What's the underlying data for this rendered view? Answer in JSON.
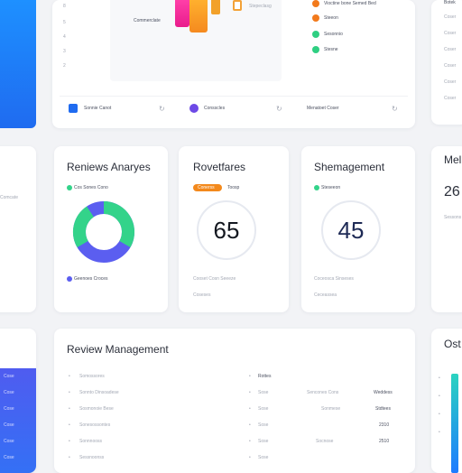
{
  "top": {
    "axis_ticks": [
      "8",
      "5",
      "4",
      "3",
      "2"
    ],
    "chart_caption": "Commerclate",
    "chart_legend": "Stepeclasg",
    "right_list": [
      "Vioctine bone Semed Bed",
      "Steeon",
      "Sesonnio",
      "Stesne"
    ],
    "footer_items": [
      "Sonnie Canot",
      "Consscles",
      "Menatoet Coser"
    ]
  },
  "far_right_top": {
    "label": "Botek",
    "rows": [
      "Coser",
      "Coser",
      "Coser",
      "Coser",
      "Coser",
      "Coser"
    ]
  },
  "left_mid": {
    "label": "Comcate"
  },
  "cards": [
    {
      "title": "Reniews Anaryes",
      "legend": "Cos Sones Cono",
      "footer": "Geenoes Croces"
    },
    {
      "title": "Rovetfares",
      "pill": "Conerss",
      "legend": "Toosp",
      "value": "65",
      "footer1": "Cooset Cosn Seeeze",
      "footer2": "Coseses"
    },
    {
      "title": "Shemagement",
      "legend": "Steseeon",
      "value": "45",
      "footer1": "Coceosca Sinseses",
      "footer2": "Ceceassea"
    }
  ],
  "right_partial_card": {
    "title": "Mel",
    "value": "26",
    "label": "Sessons"
  },
  "review": {
    "title": "Review Management",
    "rows": [
      {
        "name": "Somossores",
        "mid": "Rottes",
        "c3": "",
        "c4": ""
      },
      {
        "name": "Sonnto Dinsoadese",
        "mid": "Sose",
        "c3": "Sencones Cons",
        "c4": "Weddess"
      },
      {
        "name": "Sosmonoie  Bese",
        "mid": "Sose",
        "c3": "Sonmese",
        "c4": "Stdtees"
      },
      {
        "name": "Sonesossontes",
        "mid": "Sose",
        "c3": "",
        "c4": "2310"
      },
      {
        "name": "Sonnnooss",
        "mid": "Sose",
        "c3": "Socnose",
        "c4": "2510"
      },
      {
        "name": "Sessnoonss",
        "mid": "Sose",
        "c3": "",
        "c4": ""
      }
    ]
  },
  "bottom_left_rows": [
    "Cose",
    "Cose",
    "Cose",
    "Cose",
    "Cose",
    "Cose"
  ],
  "bottom_right_partial": {
    "title": "Ost"
  },
  "colors": {
    "blue": "#1f7bff",
    "indigo": "#5b5ef0",
    "green": "#33d38a",
    "orange": "#f08a1c",
    "magenta": "#ff2c9c"
  }
}
